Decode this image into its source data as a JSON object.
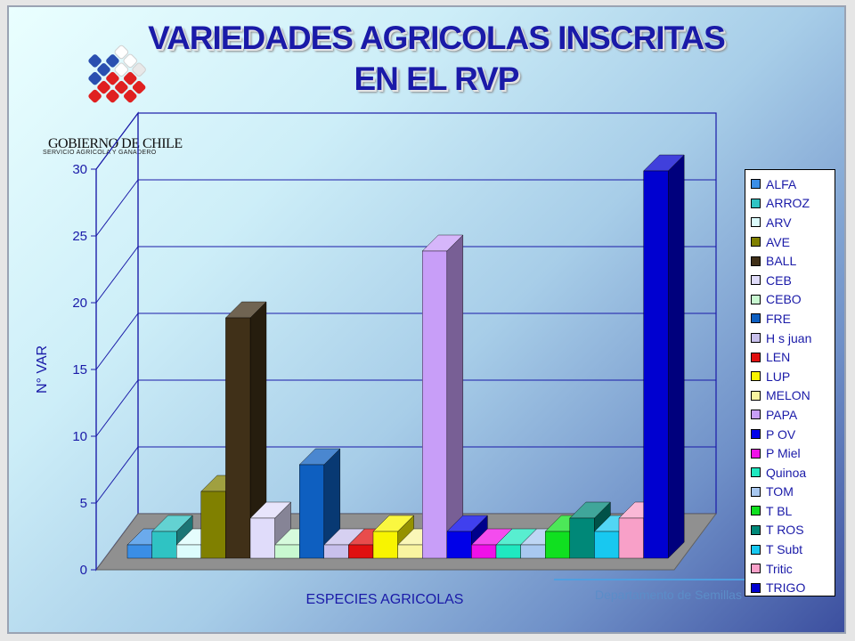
{
  "slide": {
    "title_line1": "VARIEDADES AGRICOLAS INSCRITAS",
    "title_line2": "EN EL RVP",
    "org_name": "GOBIERNO DE CHILE",
    "org_sub": "SERVICIO AGRICOLA Y GANADERO",
    "footer": "Departamento de Semillas",
    "colors": {
      "title": "#1a1aa8",
      "background_start": "#eaffff",
      "background_end": "#3c4f9f"
    }
  },
  "chart_data": {
    "type": "bar",
    "xlabel": "ESPECIES AGRICOLAS",
    "ylabel": "N° VAR",
    "ylim": [
      0,
      30
    ],
    "yticks": [
      0,
      5,
      10,
      15,
      20,
      25,
      30
    ],
    "grid": true,
    "legend_position": "right",
    "categories": [
      "ALFA",
      "ARROZ",
      "ARV",
      "AVE",
      "BALL",
      "CEB",
      "CEBO",
      "FRE",
      "H s juan",
      "LEN",
      "LUP",
      "MELON",
      "PAPA",
      "P OV",
      "P Miel",
      "Quinoa",
      "TOM",
      "T BL",
      "T ROS",
      "T Subt",
      "Tritic",
      "TRIGO"
    ],
    "values": [
      1,
      2,
      1,
      5,
      18,
      3,
      1,
      7,
      1,
      1,
      2,
      1,
      23,
      2,
      1,
      1,
      1,
      2,
      3,
      2,
      3,
      29
    ],
    "colors": [
      "#3a8ee6",
      "#2fc3c3",
      "#dcfcfc",
      "#808000",
      "#403018",
      "#e0dcfa",
      "#c8f8d0",
      "#0e5fc0",
      "#c8c0ec",
      "#e01010",
      "#f8f400",
      "#f8f4a0",
      "#c89ef8",
      "#0000e8",
      "#f010e8",
      "#20e8c0",
      "#a8c8f0",
      "#10e020",
      "#008878",
      "#18c8f0",
      "#f8a0c8",
      "#0000d0"
    ]
  }
}
